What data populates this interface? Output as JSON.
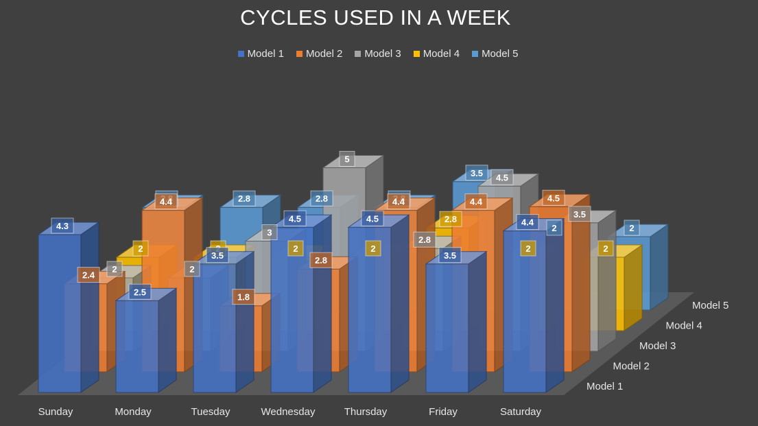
{
  "chart_data": {
    "type": "bar",
    "title": "CYCLES USED IN A WEEK",
    "categories": [
      "Sunday",
      "Monday",
      "Tuesday",
      "Wednesday",
      "Thursday",
      "Friday",
      "Saturday"
    ],
    "series": [
      {
        "name": "Model 1",
        "color": "#4472c4",
        "values": [
          4.3,
          2.5,
          3.5,
          4.5,
          4.5,
          3.5,
          4.4
        ]
      },
      {
        "name": "Model 2",
        "color": "#ed7d31",
        "values": [
          2.4,
          4.4,
          1.8,
          2.8,
          4.4,
          4.4,
          4.5
        ]
      },
      {
        "name": "Model 3",
        "color": "#a5a5a5",
        "values": [
          2,
          2,
          3,
          5,
          2.8,
          4.5,
          3.5
        ]
      },
      {
        "name": "Model 4",
        "color": "#ffc000",
        "values": [
          2,
          2,
          2,
          2,
          2.8,
          2,
          2
        ]
      },
      {
        "name": "Model 5",
        "color": "#5b9bd5",
        "values": [
          2.8,
          2.8,
          2.8,
          2.8,
          3.5,
          2,
          2
        ]
      }
    ],
    "depth_axis_labels": [
      "Model 1",
      "Model 2",
      "Model 3",
      "Model 4",
      "Model 5"
    ],
    "chart_style": "3d-column",
    "grid": false,
    "legend_position": "top"
  }
}
